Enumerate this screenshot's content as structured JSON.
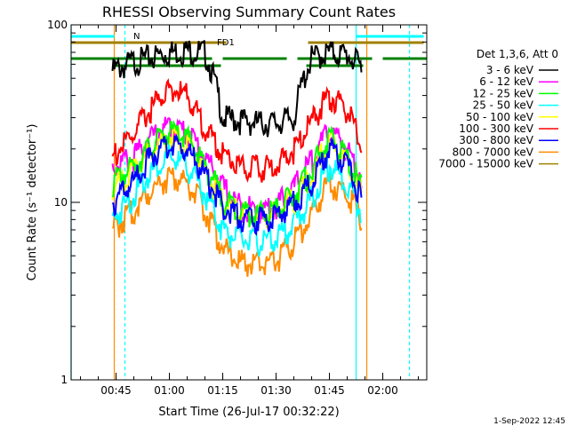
{
  "chart_data": {
    "type": "line",
    "title": "RHESSI Observing Summary Count Rates",
    "xlabel": "Start Time (26-Jul-17 00:32:22)",
    "ylabel": "Count Rate (s⁻¹ detector⁻¹)",
    "yscale": "log",
    "ylim": [
      1,
      100
    ],
    "xlim": [
      "00:32:22",
      "02:12:22"
    ],
    "x_ticks": [
      "00:45",
      "01:00",
      "01:15",
      "01:30",
      "01:45",
      "02:00"
    ],
    "y_ticks": [
      "1",
      "10",
      "100"
    ],
    "legend_header": "Det 1,3,6, Att 0",
    "legend_position": "right",
    "x_sample_times": [
      "00:44",
      "00:50",
      "00:55",
      "01:00",
      "01:05",
      "01:10",
      "01:15",
      "01:20",
      "01:25",
      "01:30",
      "01:35",
      "01:40",
      "01:45",
      "01:50",
      "01:54"
    ],
    "series": [
      {
        "name": "3 - 6 keV",
        "color": "#000000",
        "values": [
          55,
          62,
          66,
          70,
          72,
          70,
          30,
          29,
          28,
          28,
          30,
          65,
          70,
          68,
          58
        ]
      },
      {
        "name": "6 - 12 keV",
        "color": "#ff00ff",
        "values": [
          16,
          18,
          23,
          27,
          25,
          18,
          12,
          9.5,
          9,
          9.5,
          12,
          17,
          25,
          20,
          14
        ]
      },
      {
        "name": "12 - 25 keV",
        "color": "#00ff00",
        "values": [
          13,
          16,
          21,
          25,
          23,
          16,
          10.5,
          9,
          8.5,
          9,
          11,
          15,
          23,
          18,
          12
        ]
      },
      {
        "name": "25 - 50 keV",
        "color": "#00ffff",
        "values": [
          8,
          11,
          15,
          18,
          16,
          11,
          7,
          6.2,
          6,
          6.3,
          7.5,
          10.5,
          16,
          13,
          9
        ]
      },
      {
        "name": "50 - 100 keV",
        "color": "#ffff00",
        "values": [
          12,
          15,
          20,
          24,
          22,
          15,
          10,
          8.8,
          8.5,
          8.8,
          10.5,
          14,
          22,
          17,
          11
        ]
      },
      {
        "name": "100 - 300 keV",
        "color": "#ff0000",
        "values": [
          18,
          24,
          34,
          44,
          40,
          26,
          19,
          16,
          15.5,
          16,
          20,
          28,
          40,
          33,
          20
        ]
      },
      {
        "name": "300 - 800 keV",
        "color": "#0000ff",
        "values": [
          10,
          13,
          18,
          21,
          20,
          14,
          9.5,
          8.3,
          8,
          8.3,
          10,
          13,
          20,
          16,
          10.5
        ]
      },
      {
        "name": "800 - 7000 keV",
        "color": "#ff8c00",
        "values": [
          7,
          9,
          12,
          14,
          13,
          9,
          5.5,
          4.6,
          4.5,
          4.7,
          6,
          8.5,
          13,
          11,
          8
        ]
      },
      {
        "name": "7000 - 15000 keV",
        "color": "#a08000",
        "values": []
      }
    ],
    "flag_bars": [
      {
        "label": "N",
        "color": "#00ffff",
        "segments": [
          [
            "00:32:22",
            "00:44:30"
          ],
          [
            "01:52:30",
            "02:11:30"
          ]
        ]
      },
      {
        "label": "FD1",
        "color": "#a08000",
        "segments": [
          [
            "00:32:22",
            "01:16:00"
          ],
          [
            "01:39:00",
            "02:11:30"
          ]
        ]
      },
      {
        "label": "",
        "color": "#008000",
        "segments": [
          [
            "00:32:22",
            "01:12:00"
          ],
          [
            "01:15:00",
            "01:33:00"
          ],
          [
            "01:36:00",
            "01:57:00"
          ],
          [
            "02:00:00",
            "02:12:22"
          ]
        ]
      },
      {
        "label": "",
        "color": "#008000",
        "segments": [
          [
            "00:44:00",
            "01:14:30"
          ],
          [
            "01:38:30",
            "01:54:30"
          ]
        ]
      }
    ],
    "vertical_markers": [
      {
        "time": "00:32:22",
        "color": "#00ffff",
        "style": "solid"
      },
      {
        "time": "00:44:30",
        "color": "#ff8c00",
        "style": "solid"
      },
      {
        "time": "00:47:30",
        "color": "#00ffff",
        "style": "dashed"
      },
      {
        "time": "01:52:30",
        "color": "#00ffff",
        "style": "solid"
      },
      {
        "time": "01:55:30",
        "color": "#ff8c00",
        "style": "solid"
      },
      {
        "time": "02:07:30",
        "color": "#00ffff",
        "style": "dashed"
      }
    ]
  },
  "footer": {
    "timestamp": "1-Sep-2022 12:45"
  }
}
